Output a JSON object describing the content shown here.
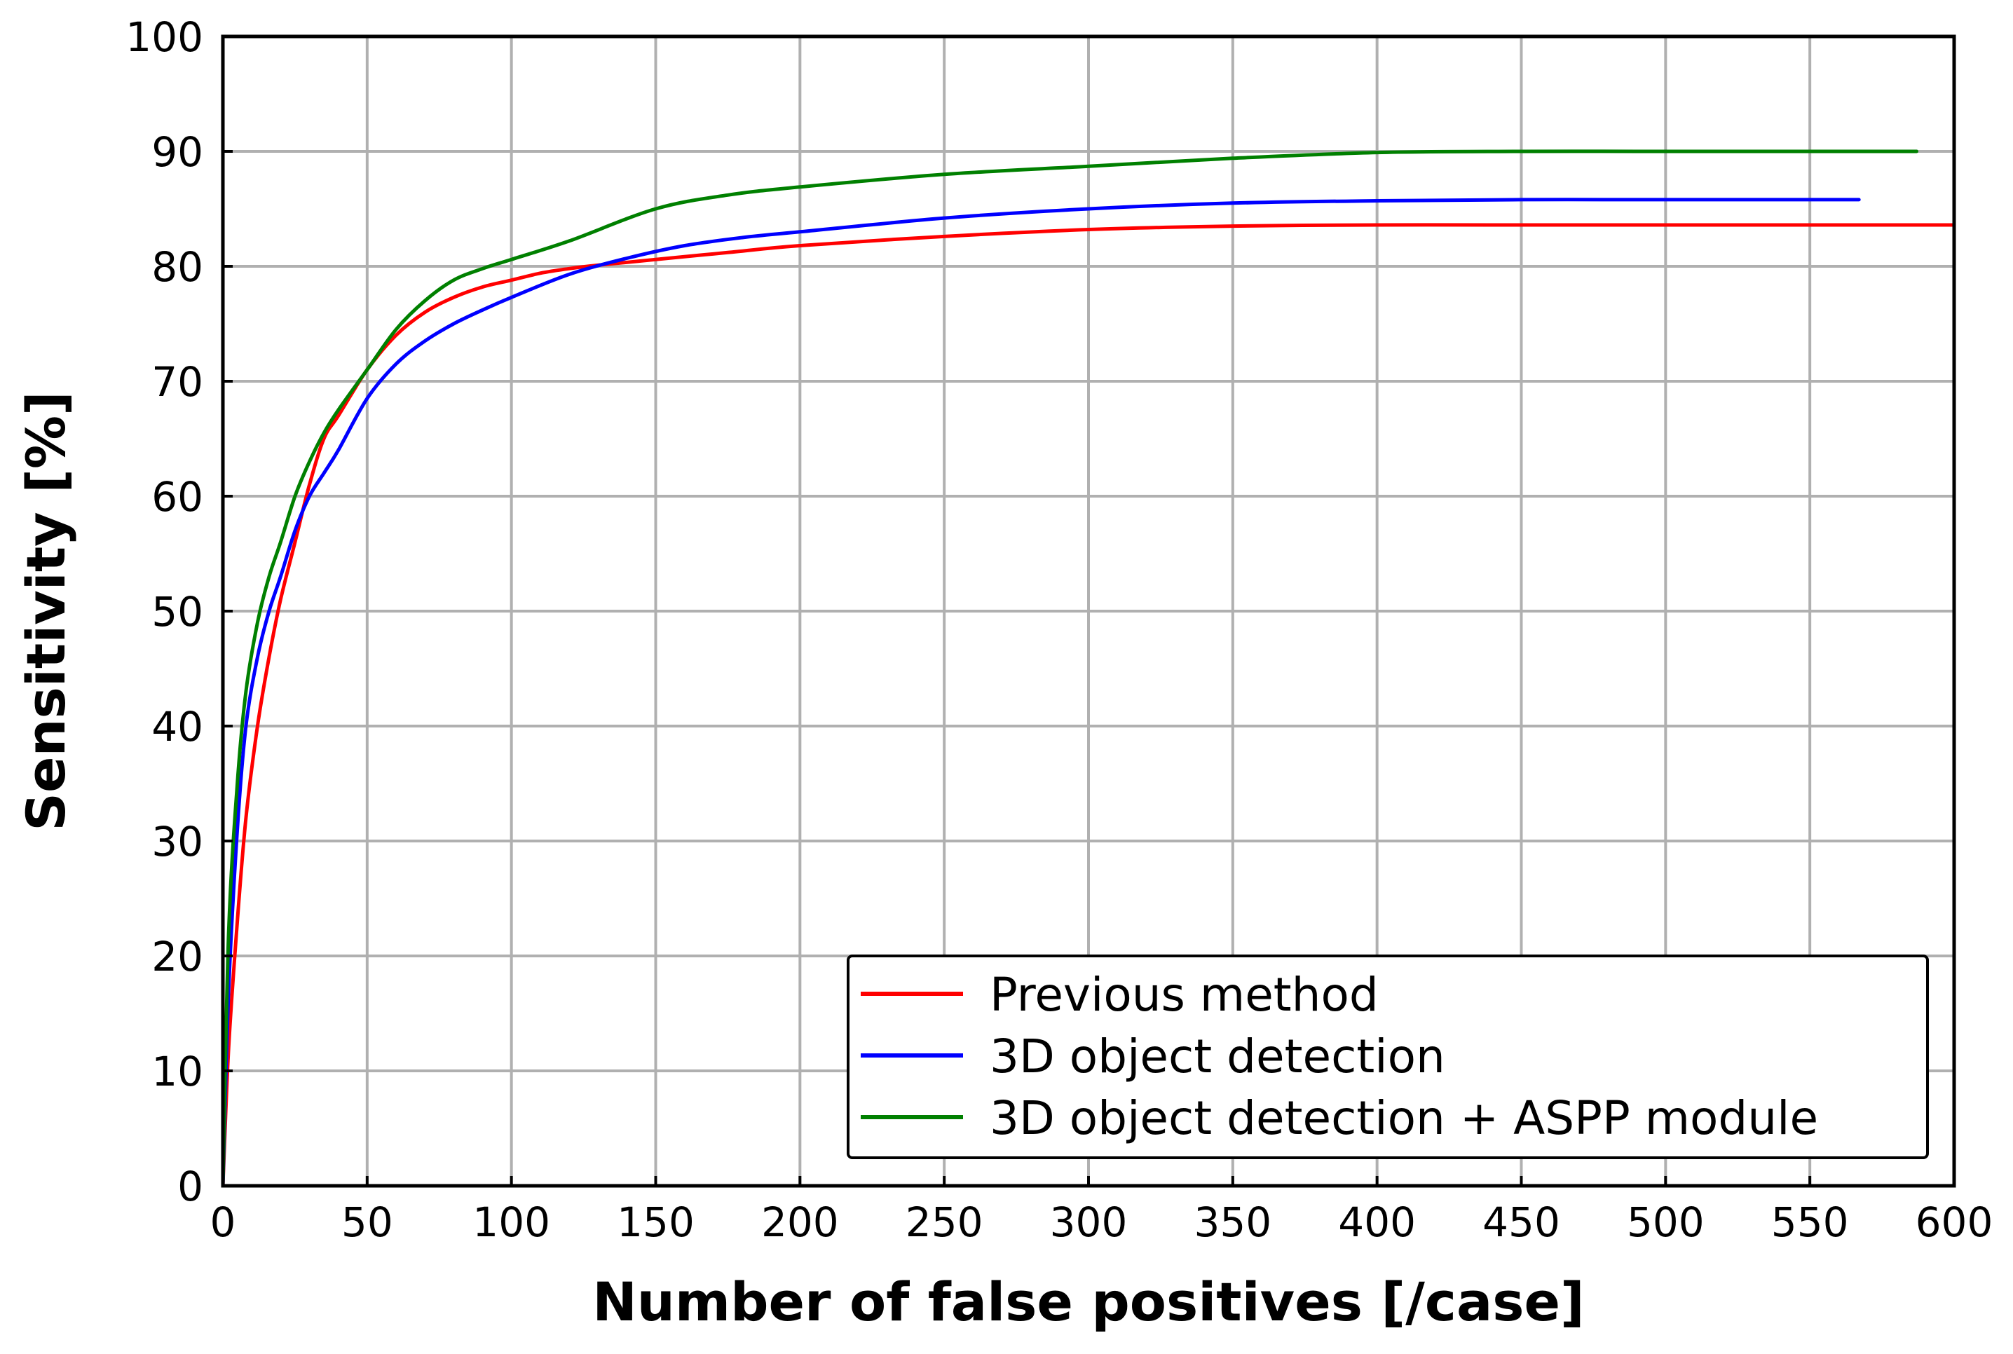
{
  "chart_data": {
    "type": "line",
    "title": "",
    "xlabel": "Number of false positives [/case]",
    "ylabel": "Sensitivity [%]",
    "xlim": [
      0,
      600
    ],
    "ylim": [
      0,
      100
    ],
    "grid": true,
    "legend_position": "lower-right",
    "x_ticks": [
      0,
      50,
      100,
      150,
      200,
      250,
      300,
      350,
      400,
      450,
      500,
      550,
      600
    ],
    "y_ticks": [
      0,
      10,
      20,
      30,
      40,
      50,
      60,
      70,
      80,
      90,
      100
    ],
    "series": [
      {
        "name": "Previous method",
        "color": "#ff0000",
        "x": [
          0,
          2,
          5,
          8,
          12,
          16,
          20,
          25,
          30,
          35,
          40,
          50,
          60,
          70,
          80,
          90,
          100,
          110,
          120,
          130,
          150,
          175,
          200,
          250,
          300,
          350,
          400,
          450,
          500,
          550,
          600
        ],
        "y": [
          0,
          12,
          23,
          32,
          40,
          46,
          51,
          56,
          61,
          65,
          67,
          71,
          74,
          76,
          77.3,
          78.2,
          78.8,
          79.4,
          79.8,
          80.1,
          80.6,
          81.2,
          81.8,
          82.6,
          83.2,
          83.5,
          83.6,
          83.6,
          83.6,
          83.6,
          83.6
        ]
      },
      {
        "name": "3D object detection",
        "color": "#0000ff",
        "x": [
          0,
          2,
          5,
          8,
          12,
          16,
          20,
          25,
          30,
          35,
          40,
          50,
          60,
          70,
          80,
          90,
          100,
          120,
          140,
          160,
          180,
          200,
          250,
          300,
          350,
          400,
          450,
          500,
          567
        ],
        "y": [
          0,
          17,
          31,
          40,
          46,
          50,
          53,
          57,
          60,
          62,
          64,
          68.5,
          71.5,
          73.5,
          75,
          76.2,
          77.3,
          79.3,
          80.7,
          81.8,
          82.5,
          83,
          84.2,
          85,
          85.5,
          85.7,
          85.8,
          85.8,
          85.8
        ]
      },
      {
        "name": "3D object detection + ASPP module",
        "color": "#008000",
        "x": [
          0,
          2,
          5,
          8,
          12,
          16,
          20,
          25,
          30,
          35,
          40,
          50,
          60,
          70,
          80,
          90,
          100,
          120,
          150,
          175,
          200,
          250,
          300,
          350,
          400,
          450,
          500,
          550,
          587
        ],
        "y": [
          0,
          22,
          35,
          43,
          49,
          53,
          56,
          60,
          63,
          65.5,
          67.5,
          71,
          74.5,
          77,
          78.8,
          79.8,
          80.6,
          82.2,
          85,
          86.2,
          86.9,
          88,
          88.7,
          89.4,
          89.9,
          90,
          90,
          90,
          90
        ]
      }
    ]
  }
}
